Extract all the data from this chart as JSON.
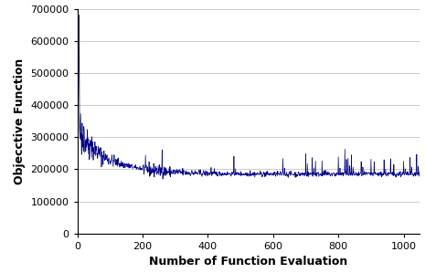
{
  "title": "",
  "xlabel": "Number of Function Evaluation",
  "ylabel": "Objecctive Function",
  "xlim": [
    0,
    1050
  ],
  "ylim": [
    0,
    700000
  ],
  "yticks": [
    0,
    100000,
    200000,
    300000,
    400000,
    500000,
    600000,
    700000
  ],
  "xticks": [
    0,
    200,
    400,
    600,
    800,
    1000
  ],
  "line_color": "#00008B",
  "bg_color": "#ffffff",
  "grid_color": "#d0d0d0",
  "figsize": [
    4.65,
    2.99
  ],
  "dpi": 100,
  "seed": 42,
  "n_points": 1050
}
